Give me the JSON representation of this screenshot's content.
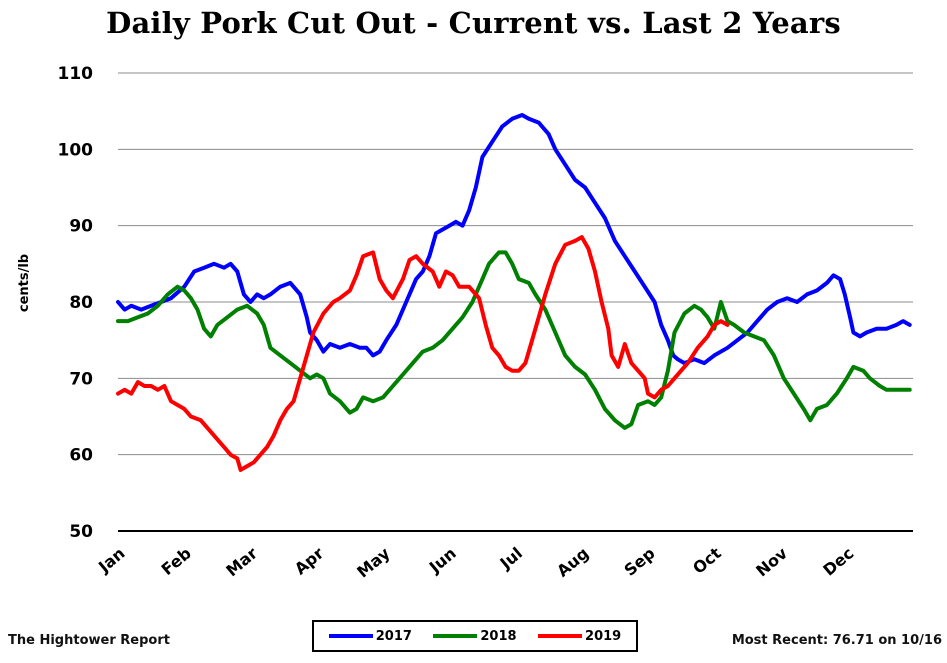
{
  "chart_data": {
    "type": "line",
    "title": "Daily Pork Cut Out - Current vs. Last 2 Years",
    "ylabel": "cents/lb",
    "xlabel": "",
    "ylim": [
      50,
      110
    ],
    "yticks": [
      50,
      60,
      70,
      80,
      90,
      100,
      110
    ],
    "x_ticks": [
      "Jan",
      "Feb",
      "Mar",
      "Apr",
      "May",
      "Jun",
      "Jul",
      "Aug",
      "Sep",
      "Oct",
      "Nov",
      "Dec"
    ],
    "x_domain": [
      1,
      13
    ],
    "grid": true,
    "legend_position": "bottom-center",
    "series": [
      {
        "name": "2017",
        "color": "#0000ff",
        "points": [
          [
            1.0,
            80
          ],
          [
            1.1,
            79
          ],
          [
            1.2,
            79.5
          ],
          [
            1.35,
            79
          ],
          [
            1.5,
            79.5
          ],
          [
            1.65,
            80
          ],
          [
            1.8,
            80.5
          ],
          [
            2.0,
            82
          ],
          [
            2.15,
            84
          ],
          [
            2.3,
            84.5
          ],
          [
            2.45,
            85
          ],
          [
            2.6,
            84.5
          ],
          [
            2.7,
            85
          ],
          [
            2.8,
            84
          ],
          [
            2.9,
            81
          ],
          [
            3.0,
            80
          ],
          [
            3.1,
            81
          ],
          [
            3.2,
            80.5
          ],
          [
            3.3,
            81
          ],
          [
            3.45,
            82
          ],
          [
            3.6,
            82.5
          ],
          [
            3.75,
            81
          ],
          [
            3.85,
            78
          ],
          [
            3.9,
            76
          ],
          [
            4.0,
            75
          ],
          [
            4.1,
            73.5
          ],
          [
            4.2,
            74.5
          ],
          [
            4.35,
            74
          ],
          [
            4.5,
            74.5
          ],
          [
            4.65,
            74
          ],
          [
            4.75,
            74
          ],
          [
            4.85,
            73
          ],
          [
            4.95,
            73.5
          ],
          [
            5.05,
            75
          ],
          [
            5.2,
            77
          ],
          [
            5.35,
            80
          ],
          [
            5.5,
            83
          ],
          [
            5.6,
            84
          ],
          [
            5.7,
            86
          ],
          [
            5.8,
            89
          ],
          [
            5.9,
            89.5
          ],
          [
            6.0,
            90
          ],
          [
            6.1,
            90.5
          ],
          [
            6.2,
            90
          ],
          [
            6.3,
            92
          ],
          [
            6.4,
            95
          ],
          [
            6.5,
            99
          ],
          [
            6.65,
            101
          ],
          [
            6.8,
            103
          ],
          [
            6.95,
            104
          ],
          [
            7.1,
            104.5
          ],
          [
            7.2,
            104
          ],
          [
            7.35,
            103.5
          ],
          [
            7.5,
            102
          ],
          [
            7.6,
            100
          ],
          [
            7.75,
            98
          ],
          [
            7.9,
            96
          ],
          [
            8.05,
            95
          ],
          [
            8.2,
            93
          ],
          [
            8.35,
            91
          ],
          [
            8.5,
            88
          ],
          [
            8.65,
            86
          ],
          [
            8.8,
            84
          ],
          [
            8.95,
            82
          ],
          [
            9.1,
            80
          ],
          [
            9.2,
            77
          ],
          [
            9.3,
            75
          ],
          [
            9.38,
            73
          ],
          [
            9.45,
            72.5
          ],
          [
            9.55,
            72
          ],
          [
            9.7,
            72.5
          ],
          [
            9.85,
            72
          ],
          [
            10.0,
            73
          ],
          [
            10.2,
            74
          ],
          [
            10.35,
            75
          ],
          [
            10.5,
            76
          ],
          [
            10.65,
            77.5
          ],
          [
            10.8,
            79
          ],
          [
            10.95,
            80
          ],
          [
            11.1,
            80.5
          ],
          [
            11.25,
            80
          ],
          [
            11.4,
            81
          ],
          [
            11.55,
            81.5
          ],
          [
            11.7,
            82.5
          ],
          [
            11.8,
            83.5
          ],
          [
            11.9,
            83
          ],
          [
            11.97,
            81
          ],
          [
            12.05,
            78
          ],
          [
            12.1,
            76
          ],
          [
            12.2,
            75.5
          ],
          [
            12.3,
            76
          ],
          [
            12.45,
            76.5
          ],
          [
            12.6,
            76.5
          ],
          [
            12.75,
            77
          ],
          [
            12.85,
            77.5
          ],
          [
            12.95,
            77
          ]
        ]
      },
      {
        "name": "2018",
        "color": "#008000",
        "points": [
          [
            1.0,
            77.5
          ],
          [
            1.15,
            77.5
          ],
          [
            1.3,
            78
          ],
          [
            1.45,
            78.5
          ],
          [
            1.6,
            79.5
          ],
          [
            1.75,
            81
          ],
          [
            1.9,
            82
          ],
          [
            2.0,
            81.5
          ],
          [
            2.1,
            80.5
          ],
          [
            2.2,
            79
          ],
          [
            2.3,
            76.5
          ],
          [
            2.4,
            75.5
          ],
          [
            2.5,
            77
          ],
          [
            2.65,
            78
          ],
          [
            2.8,
            79
          ],
          [
            2.95,
            79.5
          ],
          [
            3.1,
            78.5
          ],
          [
            3.2,
            77
          ],
          [
            3.3,
            74
          ],
          [
            3.45,
            73
          ],
          [
            3.6,
            72
          ],
          [
            3.75,
            71
          ],
          [
            3.9,
            70
          ],
          [
            4.0,
            70.5
          ],
          [
            4.1,
            70
          ],
          [
            4.2,
            68
          ],
          [
            4.35,
            67
          ],
          [
            4.5,
            65.5
          ],
          [
            4.6,
            66
          ],
          [
            4.7,
            67.5
          ],
          [
            4.85,
            67
          ],
          [
            5.0,
            67.5
          ],
          [
            5.15,
            69
          ],
          [
            5.3,
            70.5
          ],
          [
            5.45,
            72
          ],
          [
            5.6,
            73.5
          ],
          [
            5.75,
            74
          ],
          [
            5.9,
            75
          ],
          [
            6.05,
            76.5
          ],
          [
            6.2,
            78
          ],
          [
            6.35,
            80
          ],
          [
            6.5,
            83
          ],
          [
            6.6,
            85
          ],
          [
            6.75,
            86.5
          ],
          [
            6.85,
            86.5
          ],
          [
            6.95,
            85
          ],
          [
            7.05,
            83
          ],
          [
            7.2,
            82.5
          ],
          [
            7.3,
            81
          ],
          [
            7.45,
            79
          ],
          [
            7.6,
            76
          ],
          [
            7.75,
            73
          ],
          [
            7.9,
            71.5
          ],
          [
            8.05,
            70.5
          ],
          [
            8.2,
            68.5
          ],
          [
            8.35,
            66
          ],
          [
            8.5,
            64.5
          ],
          [
            8.65,
            63.5
          ],
          [
            8.75,
            64
          ],
          [
            8.85,
            66.5
          ],
          [
            9.0,
            67
          ],
          [
            9.1,
            66.5
          ],
          [
            9.2,
            67.5
          ],
          [
            9.3,
            71
          ],
          [
            9.4,
            76
          ],
          [
            9.55,
            78.5
          ],
          [
            9.7,
            79.5
          ],
          [
            9.8,
            79
          ],
          [
            9.9,
            78
          ],
          [
            10.0,
            76.5
          ],
          [
            10.1,
            80
          ],
          [
            10.2,
            77.5
          ],
          [
            10.3,
            77
          ],
          [
            10.45,
            76
          ],
          [
            10.6,
            75.5
          ],
          [
            10.75,
            75
          ],
          [
            10.9,
            73
          ],
          [
            11.05,
            70
          ],
          [
            11.2,
            68
          ],
          [
            11.35,
            66
          ],
          [
            11.45,
            64.5
          ],
          [
            11.55,
            66
          ],
          [
            11.7,
            66.5
          ],
          [
            11.85,
            68
          ],
          [
            12.0,
            70
          ],
          [
            12.1,
            71.5
          ],
          [
            12.25,
            71
          ],
          [
            12.35,
            70
          ],
          [
            12.5,
            69
          ],
          [
            12.6,
            68.5
          ],
          [
            12.75,
            68.5
          ],
          [
            12.95,
            68.5
          ]
        ]
      },
      {
        "name": "2019",
        "color": "#ff0000",
        "points": [
          [
            1.0,
            68
          ],
          [
            1.1,
            68.5
          ],
          [
            1.2,
            68
          ],
          [
            1.3,
            69.5
          ],
          [
            1.4,
            69
          ],
          [
            1.5,
            69
          ],
          [
            1.6,
            68.5
          ],
          [
            1.7,
            69
          ],
          [
            1.8,
            67
          ],
          [
            1.9,
            66.5
          ],
          [
            2.0,
            66
          ],
          [
            2.1,
            65
          ],
          [
            2.25,
            64.5
          ],
          [
            2.4,
            63
          ],
          [
            2.5,
            62
          ],
          [
            2.6,
            61
          ],
          [
            2.7,
            60
          ],
          [
            2.8,
            59.5
          ],
          [
            2.85,
            58
          ],
          [
            2.95,
            58.5
          ],
          [
            3.05,
            59
          ],
          [
            3.15,
            60
          ],
          [
            3.25,
            61
          ],
          [
            3.35,
            62.5
          ],
          [
            3.45,
            64.5
          ],
          [
            3.55,
            66
          ],
          [
            3.65,
            67
          ],
          [
            3.75,
            70
          ],
          [
            3.85,
            73
          ],
          [
            3.95,
            76
          ],
          [
            4.1,
            78.5
          ],
          [
            4.25,
            80
          ],
          [
            4.35,
            80.5
          ],
          [
            4.5,
            81.5
          ],
          [
            4.6,
            83.5
          ],
          [
            4.7,
            86
          ],
          [
            4.85,
            86.5
          ],
          [
            4.95,
            83
          ],
          [
            5.05,
            81.5
          ],
          [
            5.15,
            80.5
          ],
          [
            5.3,
            83
          ],
          [
            5.4,
            85.5
          ],
          [
            5.5,
            86
          ],
          [
            5.6,
            85
          ],
          [
            5.75,
            84
          ],
          [
            5.85,
            82
          ],
          [
            5.95,
            84
          ],
          [
            6.05,
            83.5
          ],
          [
            6.15,
            82
          ],
          [
            6.3,
            82
          ],
          [
            6.45,
            80.5
          ],
          [
            6.55,
            77
          ],
          [
            6.65,
            74
          ],
          [
            6.75,
            73
          ],
          [
            6.85,
            71.5
          ],
          [
            6.95,
            71
          ],
          [
            7.05,
            71
          ],
          [
            7.15,
            72
          ],
          [
            7.25,
            75
          ],
          [
            7.35,
            78
          ],
          [
            7.45,
            81
          ],
          [
            7.6,
            85
          ],
          [
            7.75,
            87.5
          ],
          [
            7.9,
            88
          ],
          [
            8.0,
            88.5
          ],
          [
            8.1,
            87
          ],
          [
            8.2,
            84
          ],
          [
            8.3,
            80
          ],
          [
            8.4,
            76.5
          ],
          [
            8.45,
            73
          ],
          [
            8.55,
            71.5
          ],
          [
            8.65,
            74.5
          ],
          [
            8.75,
            72
          ],
          [
            8.85,
            71
          ],
          [
            8.95,
            70
          ],
          [
            9.0,
            68
          ],
          [
            9.1,
            67.5
          ],
          [
            9.2,
            68.5
          ],
          [
            9.3,
            69
          ],
          [
            9.4,
            70
          ],
          [
            9.5,
            71
          ],
          [
            9.6,
            72
          ],
          [
            9.75,
            74
          ],
          [
            9.9,
            75.5
          ],
          [
            10.0,
            77
          ],
          [
            10.1,
            77.5
          ],
          [
            10.2,
            77
          ]
        ]
      }
    ]
  },
  "footer": {
    "source": "The Hightower Report",
    "most_recent": "Most Recent: 76.71 on 10/16"
  },
  "legend": {
    "items": [
      "2017",
      "2018",
      "2019"
    ]
  }
}
